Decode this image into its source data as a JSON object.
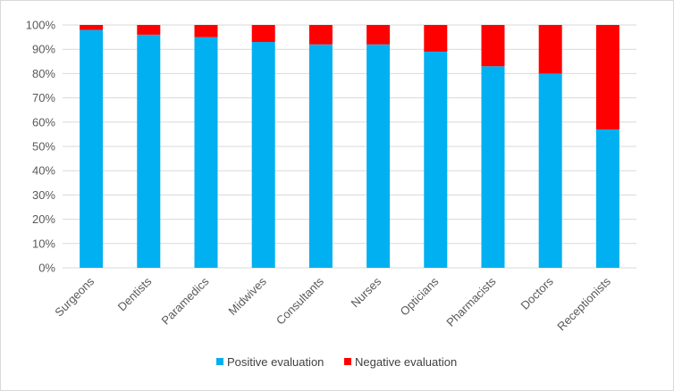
{
  "chart_data": {
    "type": "bar",
    "stacked": true,
    "categories": [
      "Surgeons",
      "Dentists",
      "Paramedics",
      "Midwives",
      "Consultants",
      "Nurses",
      "Opticians",
      "Pharmacists",
      "Doctors",
      "Receptionists"
    ],
    "series": [
      {
        "name": "Positive evaluation",
        "color": "#00b0f0",
        "values": [
          98,
          96,
          95,
          93,
          92,
          92,
          89,
          83,
          80,
          57
        ]
      },
      {
        "name": "Negative evaluation",
        "color": "#ff0000",
        "values": [
          2,
          4,
          5,
          7,
          8,
          8,
          11,
          17,
          20,
          43
        ]
      }
    ],
    "y_ticks": [
      "0%",
      "10%",
      "20%",
      "30%",
      "40%",
      "50%",
      "60%",
      "70%",
      "80%",
      "90%",
      "100%"
    ],
    "ylim": [
      0,
      100
    ],
    "grid": true,
    "legend_position": "bottom",
    "title": "",
    "xlabel": "",
    "ylabel": ""
  }
}
